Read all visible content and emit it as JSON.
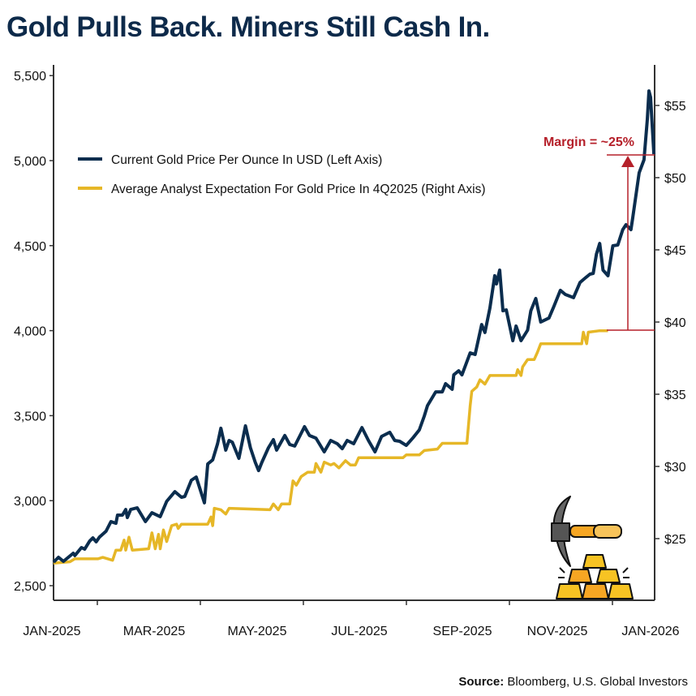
{
  "title": "Gold Pulls Back. Miners Still Cash In.",
  "source": {
    "label": "Source:",
    "text": " Bloomberg, U.S. Global Investors"
  },
  "colors": {
    "gold_price": "#0b2d4e",
    "analyst": "#e6b727",
    "annotation": "#b5202a",
    "axis": "#333333"
  },
  "icon": "pickaxe-and-gold-bars-icon",
  "chart_data": {
    "type": "line",
    "title": "Gold Pulls Back. Miners Still Cash In.",
    "legend_placement": "top-left",
    "grid": false,
    "x_ticks": [
      "JAN-2025",
      "MAR-2025",
      "MAY-2025",
      "JUL-2025",
      "SEP-2025",
      "NOV-2025",
      "JAN-2026"
    ],
    "y_left": {
      "ticks": [
        "2,500",
        "3,000",
        "3,500",
        "4,000",
        "4,500",
        "5,000",
        "5,500"
      ],
      "range": [
        2500,
        5500
      ]
    },
    "y_right": {
      "ticks": [
        "$25",
        "$30",
        "$35",
        "$40",
        "$45",
        "$50",
        "$55"
      ],
      "range": [
        22.9,
        57.3
      ]
    },
    "annotation": {
      "text": "Margin = ~25%",
      "from": 39.4,
      "to": 5038
    },
    "series": [
      {
        "name": "Current Gold Price Per Ounce In USD (Left Axis)",
        "axis": "left",
        "points": [
          [
            "2025-01-02",
            2638
          ],
          [
            "2025-01-05",
            2667
          ],
          [
            "2025-01-08",
            2643
          ],
          [
            "2025-01-14",
            2691
          ],
          [
            "2025-01-15",
            2677
          ],
          [
            "2025-01-19",
            2724
          ],
          [
            "2025-01-21",
            2715
          ],
          [
            "2025-01-24",
            2762
          ],
          [
            "2025-01-26",
            2781
          ],
          [
            "2025-01-28",
            2758
          ],
          [
            "2025-01-30",
            2786
          ],
          [
            "2025-02-03",
            2820
          ],
          [
            "2025-02-06",
            2877
          ],
          [
            "2025-02-09",
            2867
          ],
          [
            "2025-02-10",
            2915
          ],
          [
            "2025-02-13",
            2915
          ],
          [
            "2025-02-15",
            2948
          ],
          [
            "2025-02-16",
            2901
          ],
          [
            "2025-02-18",
            2948
          ],
          [
            "2025-02-22",
            2958
          ],
          [
            "2025-02-27",
            2877
          ],
          [
            "2025-03-03",
            2929
          ],
          [
            "2025-03-08",
            2906
          ],
          [
            "2025-03-12",
            2996
          ],
          [
            "2025-03-17",
            3053
          ],
          [
            "2025-03-21",
            3020
          ],
          [
            "2025-03-23",
            3025
          ],
          [
            "2025-03-27",
            3120
          ],
          [
            "2025-03-30",
            3139
          ],
          [
            "2025-04-04",
            2987
          ],
          [
            "2025-04-06",
            3216
          ],
          [
            "2025-04-09",
            3240
          ],
          [
            "2025-04-12",
            3335
          ],
          [
            "2025-04-14",
            3426
          ],
          [
            "2025-04-17",
            3297
          ],
          [
            "2025-04-19",
            3354
          ],
          [
            "2025-04-21",
            3344
          ],
          [
            "2025-04-25",
            3249
          ],
          [
            "2025-04-29",
            3440
          ],
          [
            "2025-05-02",
            3311
          ],
          [
            "2025-05-05",
            3225
          ],
          [
            "2025-05-07",
            3177
          ],
          [
            "2025-05-09",
            3225
          ],
          [
            "2025-05-13",
            3311
          ],
          [
            "2025-05-16",
            3359
          ],
          [
            "2025-05-18",
            3297
          ],
          [
            "2025-05-23",
            3383
          ],
          [
            "2025-05-26",
            3330
          ],
          [
            "2025-05-29",
            3321
          ],
          [
            "2025-06-04",
            3435
          ],
          [
            "2025-06-07",
            3383
          ],
          [
            "2025-06-11",
            3368
          ],
          [
            "2025-06-16",
            3287
          ],
          [
            "2025-06-20",
            3354
          ],
          [
            "2025-06-24",
            3335
          ],
          [
            "2025-06-27",
            3306
          ],
          [
            "2025-06-30",
            3354
          ],
          [
            "2025-07-04",
            3335
          ],
          [
            "2025-07-09",
            3430
          ],
          [
            "2025-07-13",
            3354
          ],
          [
            "2025-07-17",
            3287
          ],
          [
            "2025-07-21",
            3378
          ],
          [
            "2025-07-26",
            3402
          ],
          [
            "2025-07-29",
            3354
          ],
          [
            "2025-08-01",
            3349
          ],
          [
            "2025-08-05",
            3325
          ],
          [
            "2025-08-09",
            3368
          ],
          [
            "2025-08-13",
            3416
          ],
          [
            "2025-08-16",
            3497
          ],
          [
            "2025-08-18",
            3559
          ],
          [
            "2025-08-23",
            3640
          ],
          [
            "2025-08-27",
            3640
          ],
          [
            "2025-08-29",
            3688
          ],
          [
            "2025-09-02",
            3655
          ],
          [
            "2025-09-03",
            3740
          ],
          [
            "2025-09-06",
            3764
          ],
          [
            "2025-09-08",
            3740
          ],
          [
            "2025-09-13",
            3869
          ],
          [
            "2025-09-16",
            3860
          ],
          [
            "2025-09-20",
            4036
          ],
          [
            "2025-09-22",
            3989
          ],
          [
            "2025-09-25",
            4132
          ],
          [
            "2025-09-28",
            4323
          ],
          [
            "2025-09-29",
            4275
          ],
          [
            "2025-10-01",
            4356
          ],
          [
            "2025-10-03",
            4117
          ],
          [
            "2025-10-05",
            4122
          ],
          [
            "2025-10-09",
            3941
          ],
          [
            "2025-10-11",
            4027
          ],
          [
            "2025-10-14",
            3941
          ],
          [
            "2025-10-18",
            4003
          ],
          [
            "2025-10-20",
            4117
          ],
          [
            "2025-10-23",
            4189
          ],
          [
            "2025-10-26",
            4051
          ],
          [
            "2025-10-31",
            4074
          ],
          [
            "2025-11-03",
            4141
          ],
          [
            "2025-11-07",
            4237
          ],
          [
            "2025-11-10",
            4213
          ],
          [
            "2025-11-15",
            4194
          ],
          [
            "2025-11-19",
            4284
          ],
          [
            "2025-11-22",
            4308
          ],
          [
            "2025-11-25",
            4332
          ],
          [
            "2025-11-27",
            4337
          ],
          [
            "2025-11-29",
            4451
          ],
          [
            "2025-12-01",
            4513
          ],
          [
            "2025-12-03",
            4356
          ],
          [
            "2025-12-06",
            4323
          ],
          [
            "2025-12-09",
            4499
          ],
          [
            "2025-12-12",
            4504
          ],
          [
            "2025-12-15",
            4594
          ],
          [
            "2025-12-17",
            4623
          ],
          [
            "2025-12-20",
            4594
          ],
          [
            "2025-12-21",
            4657
          ],
          [
            "2025-12-25",
            4928
          ],
          [
            "2025-12-28",
            5005
          ],
          [
            "2025-12-30",
            5243
          ],
          [
            "2025-12-31",
            5410
          ],
          [
            "2026-01-01",
            5372
          ],
          [
            "2026-01-03",
            5038
          ]
        ]
      },
      {
        "name": "Average Analyst Expectation For Gold Price In 4Q2025 (Right Axis)",
        "axis": "right",
        "points": [
          [
            "2025-01-02",
            23.3
          ],
          [
            "2025-01-12",
            23.4
          ],
          [
            "2025-01-15",
            23.6
          ],
          [
            "2025-01-29",
            23.6
          ],
          [
            "2025-02-01",
            23.7
          ],
          [
            "2025-02-07",
            23.5
          ],
          [
            "2025-02-09",
            24.2
          ],
          [
            "2025-02-12",
            24.2
          ],
          [
            "2025-02-14",
            24.9
          ],
          [
            "2025-02-15",
            24.2
          ],
          [
            "2025-02-17",
            25.1
          ],
          [
            "2025-02-19",
            24.2
          ],
          [
            "2025-03-01",
            24.3
          ],
          [
            "2025-03-03",
            25.4
          ],
          [
            "2025-03-05",
            24.3
          ],
          [
            "2025-03-07",
            25.3
          ],
          [
            "2025-03-08",
            24.3
          ],
          [
            "2025-03-10",
            25.6
          ],
          [
            "2025-03-12",
            24.8
          ],
          [
            "2025-03-15",
            25.9
          ],
          [
            "2025-03-18",
            26.0
          ],
          [
            "2025-03-19",
            25.7
          ],
          [
            "2025-03-21",
            26.0
          ],
          [
            "2025-04-06",
            26.0
          ],
          [
            "2025-04-08",
            26.5
          ],
          [
            "2025-04-09",
            25.9
          ],
          [
            "2025-04-10",
            27.1
          ],
          [
            "2025-04-14",
            27.0
          ],
          [
            "2025-04-17",
            26.7
          ],
          [
            "2025-04-19",
            27.1
          ],
          [
            "2025-05-14",
            27.0
          ],
          [
            "2025-05-16",
            27.4
          ],
          [
            "2025-05-19",
            27.0
          ],
          [
            "2025-05-21",
            27.4
          ],
          [
            "2025-05-26",
            27.4
          ],
          [
            "2025-05-28",
            29.0
          ],
          [
            "2025-05-30",
            28.7
          ],
          [
            "2025-06-02",
            29.3
          ],
          [
            "2025-06-06",
            29.6
          ],
          [
            "2025-06-10",
            29.6
          ],
          [
            "2025-06-11",
            30.2
          ],
          [
            "2025-06-14",
            29.6
          ],
          [
            "2025-06-16",
            30.3
          ],
          [
            "2025-06-20",
            30.1
          ],
          [
            "2025-06-22",
            30.2
          ],
          [
            "2025-06-25",
            29.9
          ],
          [
            "2025-06-29",
            30.4
          ],
          [
            "2025-07-02",
            30.1
          ],
          [
            "2025-07-05",
            30.1
          ],
          [
            "2025-07-07",
            30.6
          ],
          [
            "2025-08-03",
            30.6
          ],
          [
            "2025-08-05",
            30.8
          ],
          [
            "2025-08-13",
            30.8
          ],
          [
            "2025-08-16",
            31.1
          ],
          [
            "2025-08-24",
            31.2
          ],
          [
            "2025-08-27",
            31.6
          ],
          [
            "2025-09-11",
            31.6
          ],
          [
            "2025-09-13",
            34.2
          ],
          [
            "2025-09-14",
            35.2
          ],
          [
            "2025-09-17",
            35.5
          ],
          [
            "2025-09-19",
            36.0
          ],
          [
            "2025-09-22",
            35.7
          ],
          [
            "2025-09-25",
            36.3
          ],
          [
            "2025-10-11",
            36.3
          ],
          [
            "2025-10-12",
            36.7
          ],
          [
            "2025-10-14",
            36.3
          ],
          [
            "2025-10-15",
            36.9
          ],
          [
            "2025-10-18",
            37.4
          ],
          [
            "2025-10-22",
            37.4
          ],
          [
            "2025-10-24",
            37.9
          ],
          [
            "2025-10-26",
            38.5
          ],
          [
            "2025-11-20",
            38.5
          ],
          [
            "2025-11-21",
            39.3
          ],
          [
            "2025-11-23",
            38.5
          ],
          [
            "2025-11-24",
            39.3
          ],
          [
            "2025-12-01",
            39.4
          ],
          [
            "2025-12-06",
            39.4
          ]
        ]
      }
    ]
  }
}
